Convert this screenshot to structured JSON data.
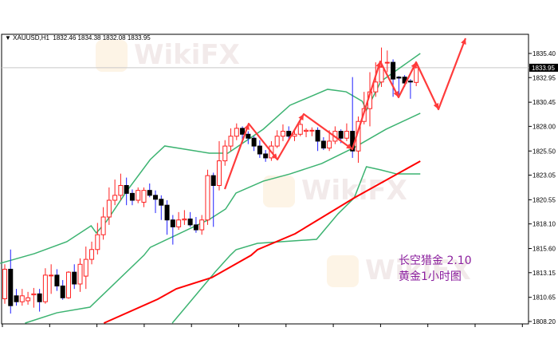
{
  "header": {
    "symbol": "XAUUSD,H1",
    "ohlc_text": "1832.46 1834.38 1832.08 1833.95"
  },
  "annotation": {
    "line1": "长空猎金  2.10",
    "line2": "黄金1小时图"
  },
  "watermark": "WikiFX",
  "colors": {
    "bull": "#ff2020",
    "bear_body": "#000000",
    "bear_wick": "#2020ff",
    "bands": "#3cb371",
    "ma": "#ff0000",
    "arrow": "#ff3b3b",
    "annotation": "#8b1f9e",
    "price_tag_bg": "#000000"
  },
  "chart_data": {
    "type": "candlestick",
    "current_price": "1833.95",
    "ylim": [
      1808.2,
      1836.5
    ],
    "y_ticks": [
      "1835.40",
      "1832.95",
      "1830.45",
      "1828.00",
      "1825.50",
      "1823.05",
      "1820.55",
      "1818.10",
      "1815.60",
      "1813.15",
      "1810.65",
      "1808.20"
    ],
    "candles": [
      [
        1810.5,
        1814.0,
        1810.0,
        1813.5
      ],
      [
        1813.5,
        1815.5,
        1809.0,
        1809.8
      ],
      [
        1810.8,
        1811.5,
        1809.8,
        1810.2
      ],
      [
        1810.2,
        1811.5,
        1809.8,
        1810.8
      ],
      [
        1810.3,
        1811.2,
        1809.9,
        1810.6
      ],
      [
        1810.9,
        1811.6,
        1809.6,
        1811.0
      ],
      [
        1811.0,
        1811.5,
        1809.2,
        1810.2
      ],
      [
        1810.2,
        1813.6,
        1810.0,
        1812.9
      ],
      [
        1812.9,
        1814.0,
        1811.0,
        1812.9
      ],
      [
        1812.9,
        1813.5,
        1811.3,
        1811.8
      ],
      [
        1811.8,
        1812.4,
        1810.4,
        1810.6
      ],
      [
        1810.6,
        1813.3,
        1810.5,
        1813.2
      ],
      [
        1813.2,
        1814.0,
        1811.5,
        1812.0
      ],
      [
        1812.0,
        1814.6,
        1811.2,
        1814.0
      ],
      [
        1812.8,
        1815.8,
        1811.5,
        1814.5
      ],
      [
        1814.5,
        1816.3,
        1814.0,
        1815.5
      ],
      [
        1815.5,
        1818.2,
        1815.0,
        1817.0
      ],
      [
        1817.0,
        1819.8,
        1816.5,
        1818.8
      ],
      [
        1818.8,
        1821.8,
        1818.0,
        1820.5
      ],
      [
        1820.5,
        1822.6,
        1820.0,
        1821.0
      ],
      [
        1821.0,
        1823.2,
        1820.5,
        1822.0
      ],
      [
        1822.0,
        1822.8,
        1820.0,
        1821.2
      ],
      [
        1821.2,
        1821.6,
        1820.0,
        1820.5
      ],
      [
        1820.5,
        1821.8,
        1820.2,
        1821.5
      ],
      [
        1820.3,
        1821.8,
        1819.8,
        1821.5
      ],
      [
        1821.5,
        1822.2,
        1820.8,
        1821.0
      ],
      [
        1821.0,
        1821.5,
        1819.2,
        1820.6
      ],
      [
        1820.6,
        1821.0,
        1818.5,
        1820.0
      ],
      [
        1820.0,
        1820.5,
        1817.0,
        1818.5
      ],
      [
        1818.5,
        1819.0,
        1816.0,
        1817.8
      ],
      [
        1817.8,
        1819.3,
        1817.5,
        1818.5
      ],
      [
        1818.5,
        1819.5,
        1818.0,
        1818.6
      ],
      [
        1818.6,
        1819.3,
        1817.8,
        1818.0
      ],
      [
        1818.0,
        1818.8,
        1817.2,
        1817.5
      ],
      [
        1817.5,
        1819.0,
        1817.0,
        1818.5
      ],
      [
        1818.5,
        1823.6,
        1818.0,
        1823.0
      ],
      [
        1823.0,
        1823.3,
        1817.8,
        1822.0
      ],
      [
        1822.0,
        1826.5,
        1821.5,
        1824.5
      ],
      [
        1824.5,
        1826.6,
        1824.0,
        1826.0
      ],
      [
        1826.0,
        1827.8,
        1825.5,
        1827.0
      ],
      [
        1827.0,
        1828.3,
        1826.6,
        1827.8
      ],
      [
        1827.8,
        1828.0,
        1826.6,
        1827.2
      ],
      [
        1827.2,
        1827.5,
        1826.2,
        1826.8
      ],
      [
        1826.8,
        1827.0,
        1825.5,
        1826.0
      ],
      [
        1826.0,
        1826.6,
        1824.8,
        1825.2
      ],
      [
        1825.2,
        1825.6,
        1824.4,
        1824.8
      ],
      [
        1824.8,
        1826.5,
        1824.5,
        1826.0
      ],
      [
        1826.0,
        1827.6,
        1825.8,
        1827.0
      ],
      [
        1827.0,
        1828.2,
        1826.5,
        1827.5
      ],
      [
        1827.5,
        1828.0,
        1826.6,
        1827.0
      ],
      [
        1827.0,
        1827.6,
        1826.5,
        1827.2
      ],
      [
        1827.2,
        1828.5,
        1827.0,
        1828.2
      ],
      [
        1827.5,
        1827.8,
        1826.9,
        1827.6
      ],
      [
        1827.6,
        1827.9,
        1827.0,
        1827.6
      ],
      [
        1827.6,
        1827.9,
        1825.5,
        1826.5
      ],
      [
        1826.5,
        1826.9,
        1825.6,
        1825.8
      ],
      [
        1825.8,
        1827.6,
        1825.5,
        1826.5
      ],
      [
        1826.5,
        1828.0,
        1826.2,
        1827.5
      ],
      [
        1827.5,
        1827.7,
        1826.3,
        1826.8
      ],
      [
        1826.8,
        1828.3,
        1826.5,
        1827.5
      ],
      [
        1827.5,
        1833.0,
        1824.8,
        1825.5
      ],
      [
        1825.5,
        1829.0,
        1824.3,
        1828.5
      ],
      [
        1828.5,
        1831.5,
        1828.2,
        1829.8
      ],
      [
        1829.8,
        1833.5,
        1828.0,
        1831.5
      ],
      [
        1831.5,
        1834.5,
        1831.0,
        1832.5
      ],
      [
        1832.5,
        1836.0,
        1832.0,
        1834.0
      ],
      [
        1834.5,
        1835.7,
        1833.5,
        1834.5
      ],
      [
        1834.5,
        1834.8,
        1831.0,
        1832.8
      ],
      [
        1833.0,
        1833.1,
        1831.2,
        1832.9
      ],
      [
        1833.0,
        1833.2,
        1832.0,
        1832.4
      ],
      [
        1832.6,
        1832.8,
        1830.8,
        1832.5
      ],
      [
        1832.46,
        1834.38,
        1832.08,
        1833.95
      ]
    ],
    "upper_band": [
      [
        -0.8,
        1814.1
      ],
      [
        5.1,
        1815.08
      ],
      [
        10.7,
        1816.29
      ],
      [
        14.9,
        1817.91
      ],
      [
        15.8,
        1817.18
      ],
      [
        17.6,
        1818.4
      ],
      [
        21,
        1821.39
      ],
      [
        25.1,
        1824.63
      ],
      [
        27.6,
        1826.01
      ],
      [
        35.3,
        1825.28
      ],
      [
        38.5,
        1825.28
      ],
      [
        44.6,
        1827.71
      ],
      [
        49.2,
        1830.14
      ],
      [
        55.7,
        1831.76
      ],
      [
        58.9,
        1831.51
      ],
      [
        61.7,
        1830.54
      ],
      [
        62.4,
        1829.65
      ],
      [
        64.9,
        1832.57
      ],
      [
        71.7,
        1835.4
      ]
    ],
    "middle_band": [
      [
        3.5,
        1808.03
      ],
      [
        9,
        1809.08
      ],
      [
        14.7,
        1809.65
      ],
      [
        24,
        1814.91
      ],
      [
        25.1,
        1815.72
      ],
      [
        35.3,
        1818.56
      ],
      [
        38.1,
        1819.61
      ],
      [
        39.9,
        1821.23
      ],
      [
        44.6,
        1822.44
      ],
      [
        49.2,
        1823.17
      ],
      [
        54.7,
        1824.23
      ],
      [
        60.3,
        1825.85
      ],
      [
        65.8,
        1827.71
      ],
      [
        71.7,
        1829.33
      ]
    ],
    "lower_band": [
      [
        28.9,
        1808.03
      ],
      [
        32.6,
        1810.62
      ],
      [
        36.4,
        1813.29
      ],
      [
        38.9,
        1814.91
      ],
      [
        39.9,
        1815.48
      ],
      [
        43.6,
        1816.13
      ],
      [
        53.8,
        1816.53
      ],
      [
        57.5,
        1819.12
      ],
      [
        60.3,
        1820.74
      ],
      [
        62.4,
        1823.9
      ],
      [
        64.9,
        1823.58
      ],
      [
        67.6,
        1823.17
      ],
      [
        71.7,
        1823.17
      ]
    ],
    "moving_average": [
      [
        17.1,
        1808.03
      ],
      [
        26.4,
        1810.46
      ],
      [
        29.6,
        1811.51
      ],
      [
        35.7,
        1812.65
      ],
      [
        42.5,
        1814.91
      ],
      [
        43.6,
        1815.48
      ],
      [
        50.1,
        1817.1
      ],
      [
        60.3,
        1820.74
      ],
      [
        71.7,
        1824.47
      ]
    ]
  }
}
